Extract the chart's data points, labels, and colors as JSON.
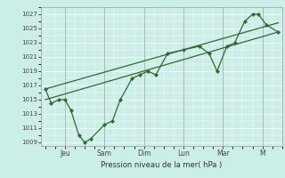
{
  "xlabel": "Pression niveau de la mer( hPa )",
  "bg_color": "#cceee8",
  "line_color": "#2d6a2d",
  "grid_color": "#ffffff",
  "ylim": [
    1008.5,
    1028.0
  ],
  "yticks": [
    1009,
    1011,
    1013,
    1015,
    1017,
    1019,
    1021,
    1023,
    1025,
    1027
  ],
  "xtick_labels": [
    "Jeu",
    "Sam",
    "Dim",
    "Lun",
    "Mar",
    "M"
  ],
  "xtick_positions": [
    1,
    3,
    5,
    7,
    9,
    11
  ],
  "xlim": [
    -0.2,
    12.0
  ],
  "line1_x": [
    0.0,
    0.3,
    0.7,
    1.0,
    1.3,
    1.7,
    2.0,
    2.3,
    3.0,
    3.4,
    3.8,
    4.4,
    4.8,
    5.2,
    5.6,
    6.2,
    7.0,
    7.8,
    8.3,
    8.7,
    9.2,
    9.6,
    10.1,
    10.5,
    10.8,
    11.2,
    11.8
  ],
  "line1_y": [
    1016.5,
    1014.5,
    1015.0,
    1015.0,
    1013.5,
    1010.0,
    1009.0,
    1009.5,
    1011.5,
    1012.0,
    1015.0,
    1018.0,
    1018.5,
    1019.0,
    1018.5,
    1021.5,
    1022.0,
    1022.5,
    1021.5,
    1019.0,
    1022.5,
    1023.0,
    1026.0,
    1027.0,
    1027.0,
    1025.5,
    1024.5
  ],
  "line2_x": [
    0.0,
    11.8
  ],
  "line2_y": [
    1015.0,
    1024.5
  ],
  "line3_x": [
    0.0,
    11.8
  ],
  "line3_y": [
    1016.5,
    1025.8
  ]
}
